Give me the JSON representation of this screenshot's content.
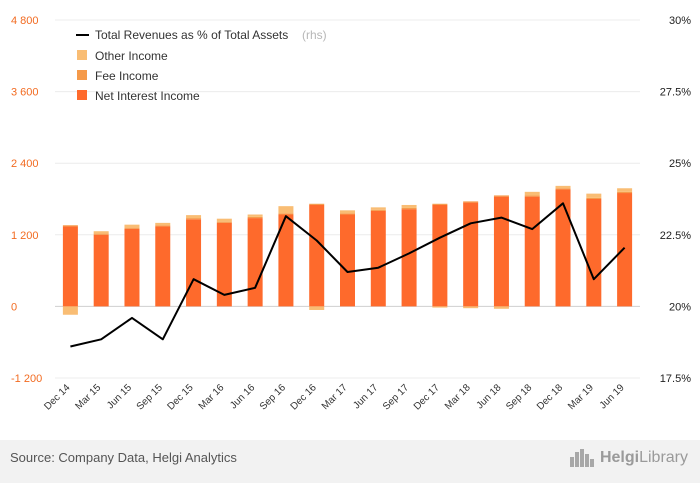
{
  "colors": {
    "net_interest": "#fe6a2c",
    "fee": "#f59a4a",
    "other": "#f9bd74",
    "line": "#000000",
    "left_axis_text": "#f26b21"
  },
  "legend": {
    "line_label": "Total Revenues as % of Total Assets",
    "line_suffix": "(rhs)",
    "other": "Other Income",
    "fee": "Fee Income",
    "nii": "Net Interest Income"
  },
  "footer": {
    "source": "Source: Company Data, Helgi Analytics",
    "brand_bold": "Helgi",
    "brand_light": "Library"
  },
  "chart_data": {
    "type": "bar",
    "categories": [
      "Dec 14",
      "Mar 15",
      "Jun 15",
      "Sep 15",
      "Dec 15",
      "Mar 16",
      "Jun 16",
      "Sep 16",
      "Dec 16",
      "Mar 17",
      "Jun 17",
      "Sep 17",
      "Dec 17",
      "Mar 18",
      "Jun 18",
      "Sep 18",
      "Dec 18",
      "Mar 19",
      "Jun 19"
    ],
    "series": [
      {
        "name": "Net Interest Income",
        "axis": "left",
        "stack": "income",
        "values": [
          1340,
          1200,
          1300,
          1340,
          1460,
          1400,
          1480,
          1540,
          1700,
          1540,
          1600,
          1630,
          1700,
          1740,
          1840,
          1840,
          1960,
          1800,
          1900
        ]
      },
      {
        "name": "Fee Income",
        "axis": "left",
        "stack": "income",
        "values": [
          20,
          20,
          20,
          20,
          20,
          20,
          20,
          20,
          20,
          20,
          20,
          20,
          20,
          20,
          20,
          20,
          20,
          20,
          20
        ]
      },
      {
        "name": "Other Income",
        "axis": "left",
        "stack": "income",
        "values": [
          -140,
          40,
          50,
          40,
          50,
          50,
          40,
          120,
          -60,
          50,
          40,
          50,
          -20,
          -30,
          -40,
          60,
          40,
          70,
          60
        ]
      },
      {
        "name": "Total Revenues as % of Total Assets",
        "axis": "right",
        "type": "line",
        "values": [
          18.6,
          18.85,
          19.6,
          18.85,
          20.95,
          20.4,
          20.65,
          23.15,
          22.3,
          21.2,
          21.35,
          21.85,
          22.4,
          22.9,
          23.1,
          22.7,
          23.6,
          20.95,
          22.05
        ]
      }
    ],
    "left_axis": {
      "ticks": [
        -1200,
        0,
        1200,
        2400,
        3600,
        4800
      ],
      "tick_labels": [
        "-1 200",
        "0",
        "1 200",
        "2 400",
        "3 600",
        "4 800"
      ],
      "range": [
        -1200,
        4800
      ]
    },
    "right_axis": {
      "ticks": [
        17.5,
        20,
        22.5,
        25,
        27.5,
        30
      ],
      "tick_labels": [
        "17.5%",
        "20%",
        "22.5%",
        "25%",
        "27.5%",
        "30%"
      ],
      "range": [
        17.5,
        30
      ]
    },
    "grid": true,
    "legend_position": "top-left"
  }
}
